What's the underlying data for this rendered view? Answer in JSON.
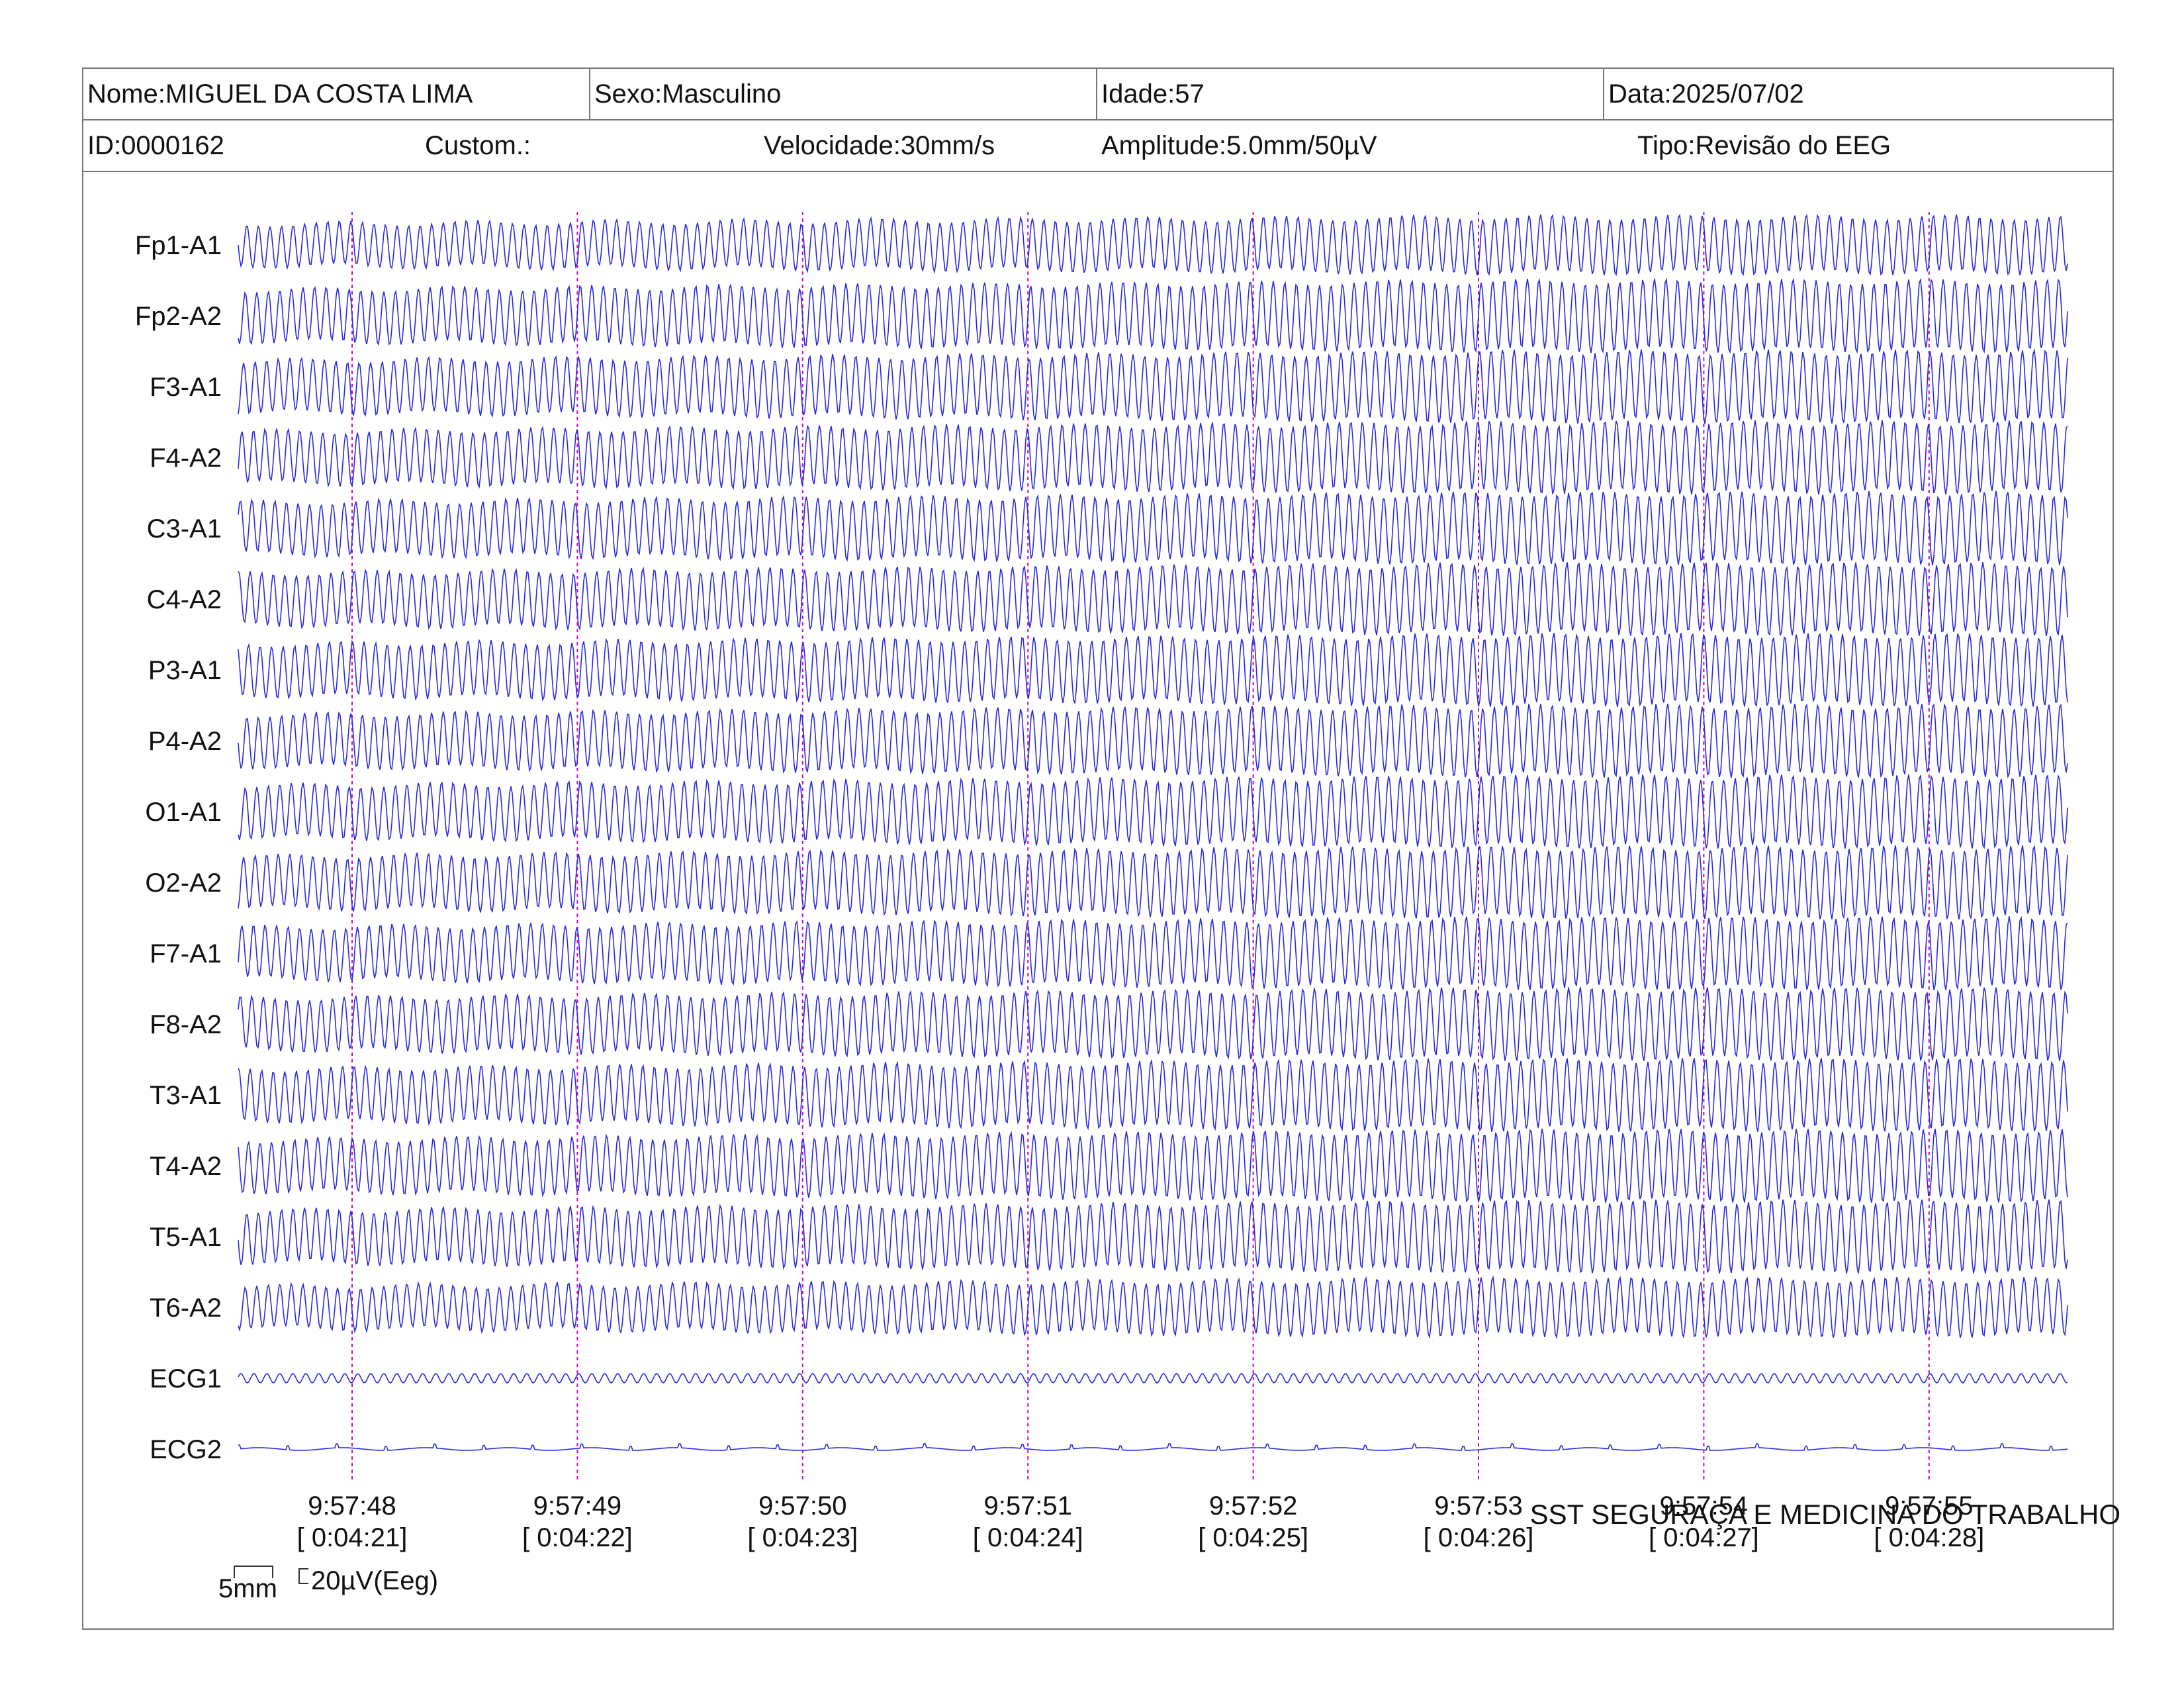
{
  "header": {
    "name": "Nome:MIGUEL DA COSTA LIMA",
    "sex": "Sexo:Masculino",
    "age": "Idade:57",
    "date": "Data:2025/07/02",
    "id": "ID:0000162",
    "custom": "Custom.:",
    "speed": "Velocidade:30mm/s",
    "amplitude": "Amplitude:5.0mm/50µV",
    "type": "Tipo:Revisão do EEG"
  },
  "footer": {
    "brand": "SST SEGURAÇA E MEDICINA DO TRABALHO",
    "scale_horizontal": "5mm",
    "scale_vertical": "20µV(Eeg)"
  },
  "colors": {
    "trace": "#2a2adb",
    "marker": "#d000d0",
    "border": "#777777"
  },
  "chart_data": {
    "type": "line",
    "channels": [
      "Fp1-A1",
      "Fp2-A2",
      "F3-A1",
      "F4-A2",
      "C3-A1",
      "C4-A2",
      "P3-A1",
      "P4-A2",
      "O1-A1",
      "O2-A2",
      "F7-A1",
      "F8-A2",
      "T3-A1",
      "T4-A2",
      "T5-A1",
      "T6-A2",
      "ECG1",
      "ECG2"
    ],
    "time_markers": [
      {
        "clock": "9:57:48",
        "elapsed": "[ 0:04:21]"
      },
      {
        "clock": "9:57:49",
        "elapsed": "[ 0:04:22]"
      },
      {
        "clock": "9:57:50",
        "elapsed": "[ 0:04:23]"
      },
      {
        "clock": "9:57:51",
        "elapsed": "[ 0:04:24]"
      },
      {
        "clock": "9:57:52",
        "elapsed": "[ 0:04:25]"
      },
      {
        "clock": "9:57:53",
        "elapsed": "[ 0:04:26]"
      },
      {
        "clock": "9:57:54",
        "elapsed": "[ 0:04:27]"
      },
      {
        "clock": "9:57:55",
        "elapsed": "[ 0:04:28]"
      }
    ],
    "speed_mm_per_s": 30,
    "amplitude_mm_per_50uV": 5.0
  }
}
